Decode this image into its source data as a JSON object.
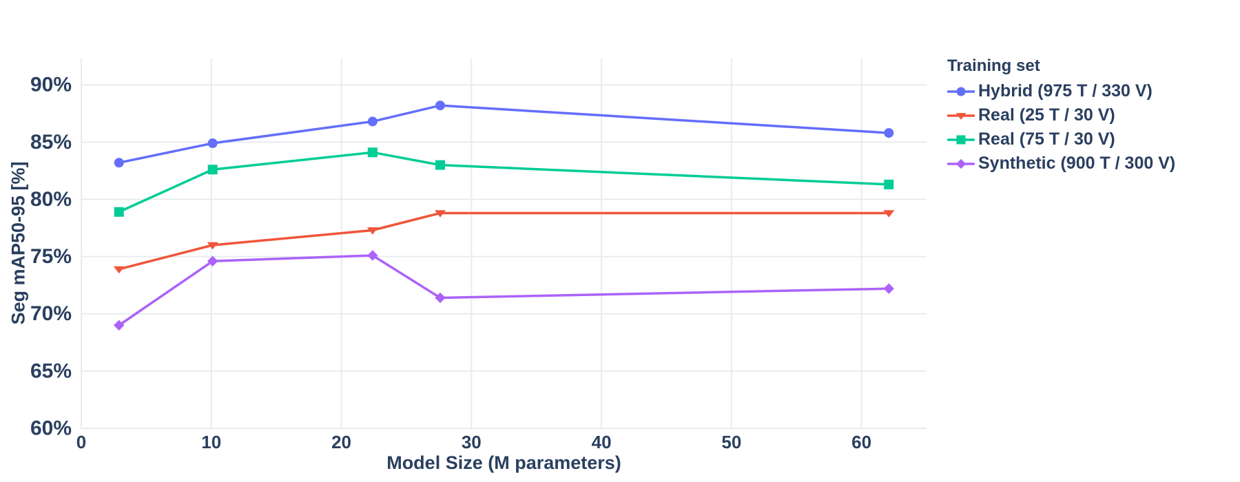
{
  "chart_data": {
    "type": "line",
    "title": "",
    "xlabel": "Model Size (M parameters)",
    "ylabel": "Seg mAP50-95 [%]",
    "legend_title": "Training set",
    "legend_position": "right",
    "grid": true,
    "x": [
      2.9,
      10.1,
      22.4,
      27.6,
      62.1
    ],
    "series": [
      {
        "name": "Hybrid (975 T / 330 V)",
        "color": "#636EFA",
        "marker": "circle",
        "values": [
          83.2,
          84.9,
          86.8,
          88.2,
          85.8
        ]
      },
      {
        "name": "Real (25 T / 30 V)",
        "color": "#EF553B",
        "marker": "triangle-down",
        "values": [
          73.9,
          76.0,
          77.3,
          78.8,
          78.8
        ]
      },
      {
        "name": "Real (75 T / 30 V)",
        "color": "#00CC96",
        "marker": "square",
        "values": [
          78.9,
          82.6,
          84.1,
          83.0,
          81.3
        ]
      },
      {
        "name": "Synthetic (900 T / 300 V)",
        "color": "#AB63FA",
        "marker": "diamond",
        "values": [
          69.0,
          74.6,
          75.1,
          71.4,
          72.2
        ]
      }
    ],
    "xticks": [
      0,
      10,
      20,
      30,
      40,
      50,
      60
    ],
    "xticklabels": [
      "0",
      "10",
      "20",
      "30",
      "40",
      "50",
      "60"
    ],
    "yticks": [
      60,
      65,
      70,
      75,
      80,
      85,
      90
    ],
    "yticklabels": [
      "60%",
      "65%",
      "70%",
      "75%",
      "80%",
      "85%",
      "90%"
    ],
    "xlim": [
      0,
      65
    ],
    "ylim": [
      60,
      92.3
    ],
    "colors": {
      "text": "#2a3f5f",
      "grid": "#e8ebef",
      "background": "#ffffff"
    }
  }
}
